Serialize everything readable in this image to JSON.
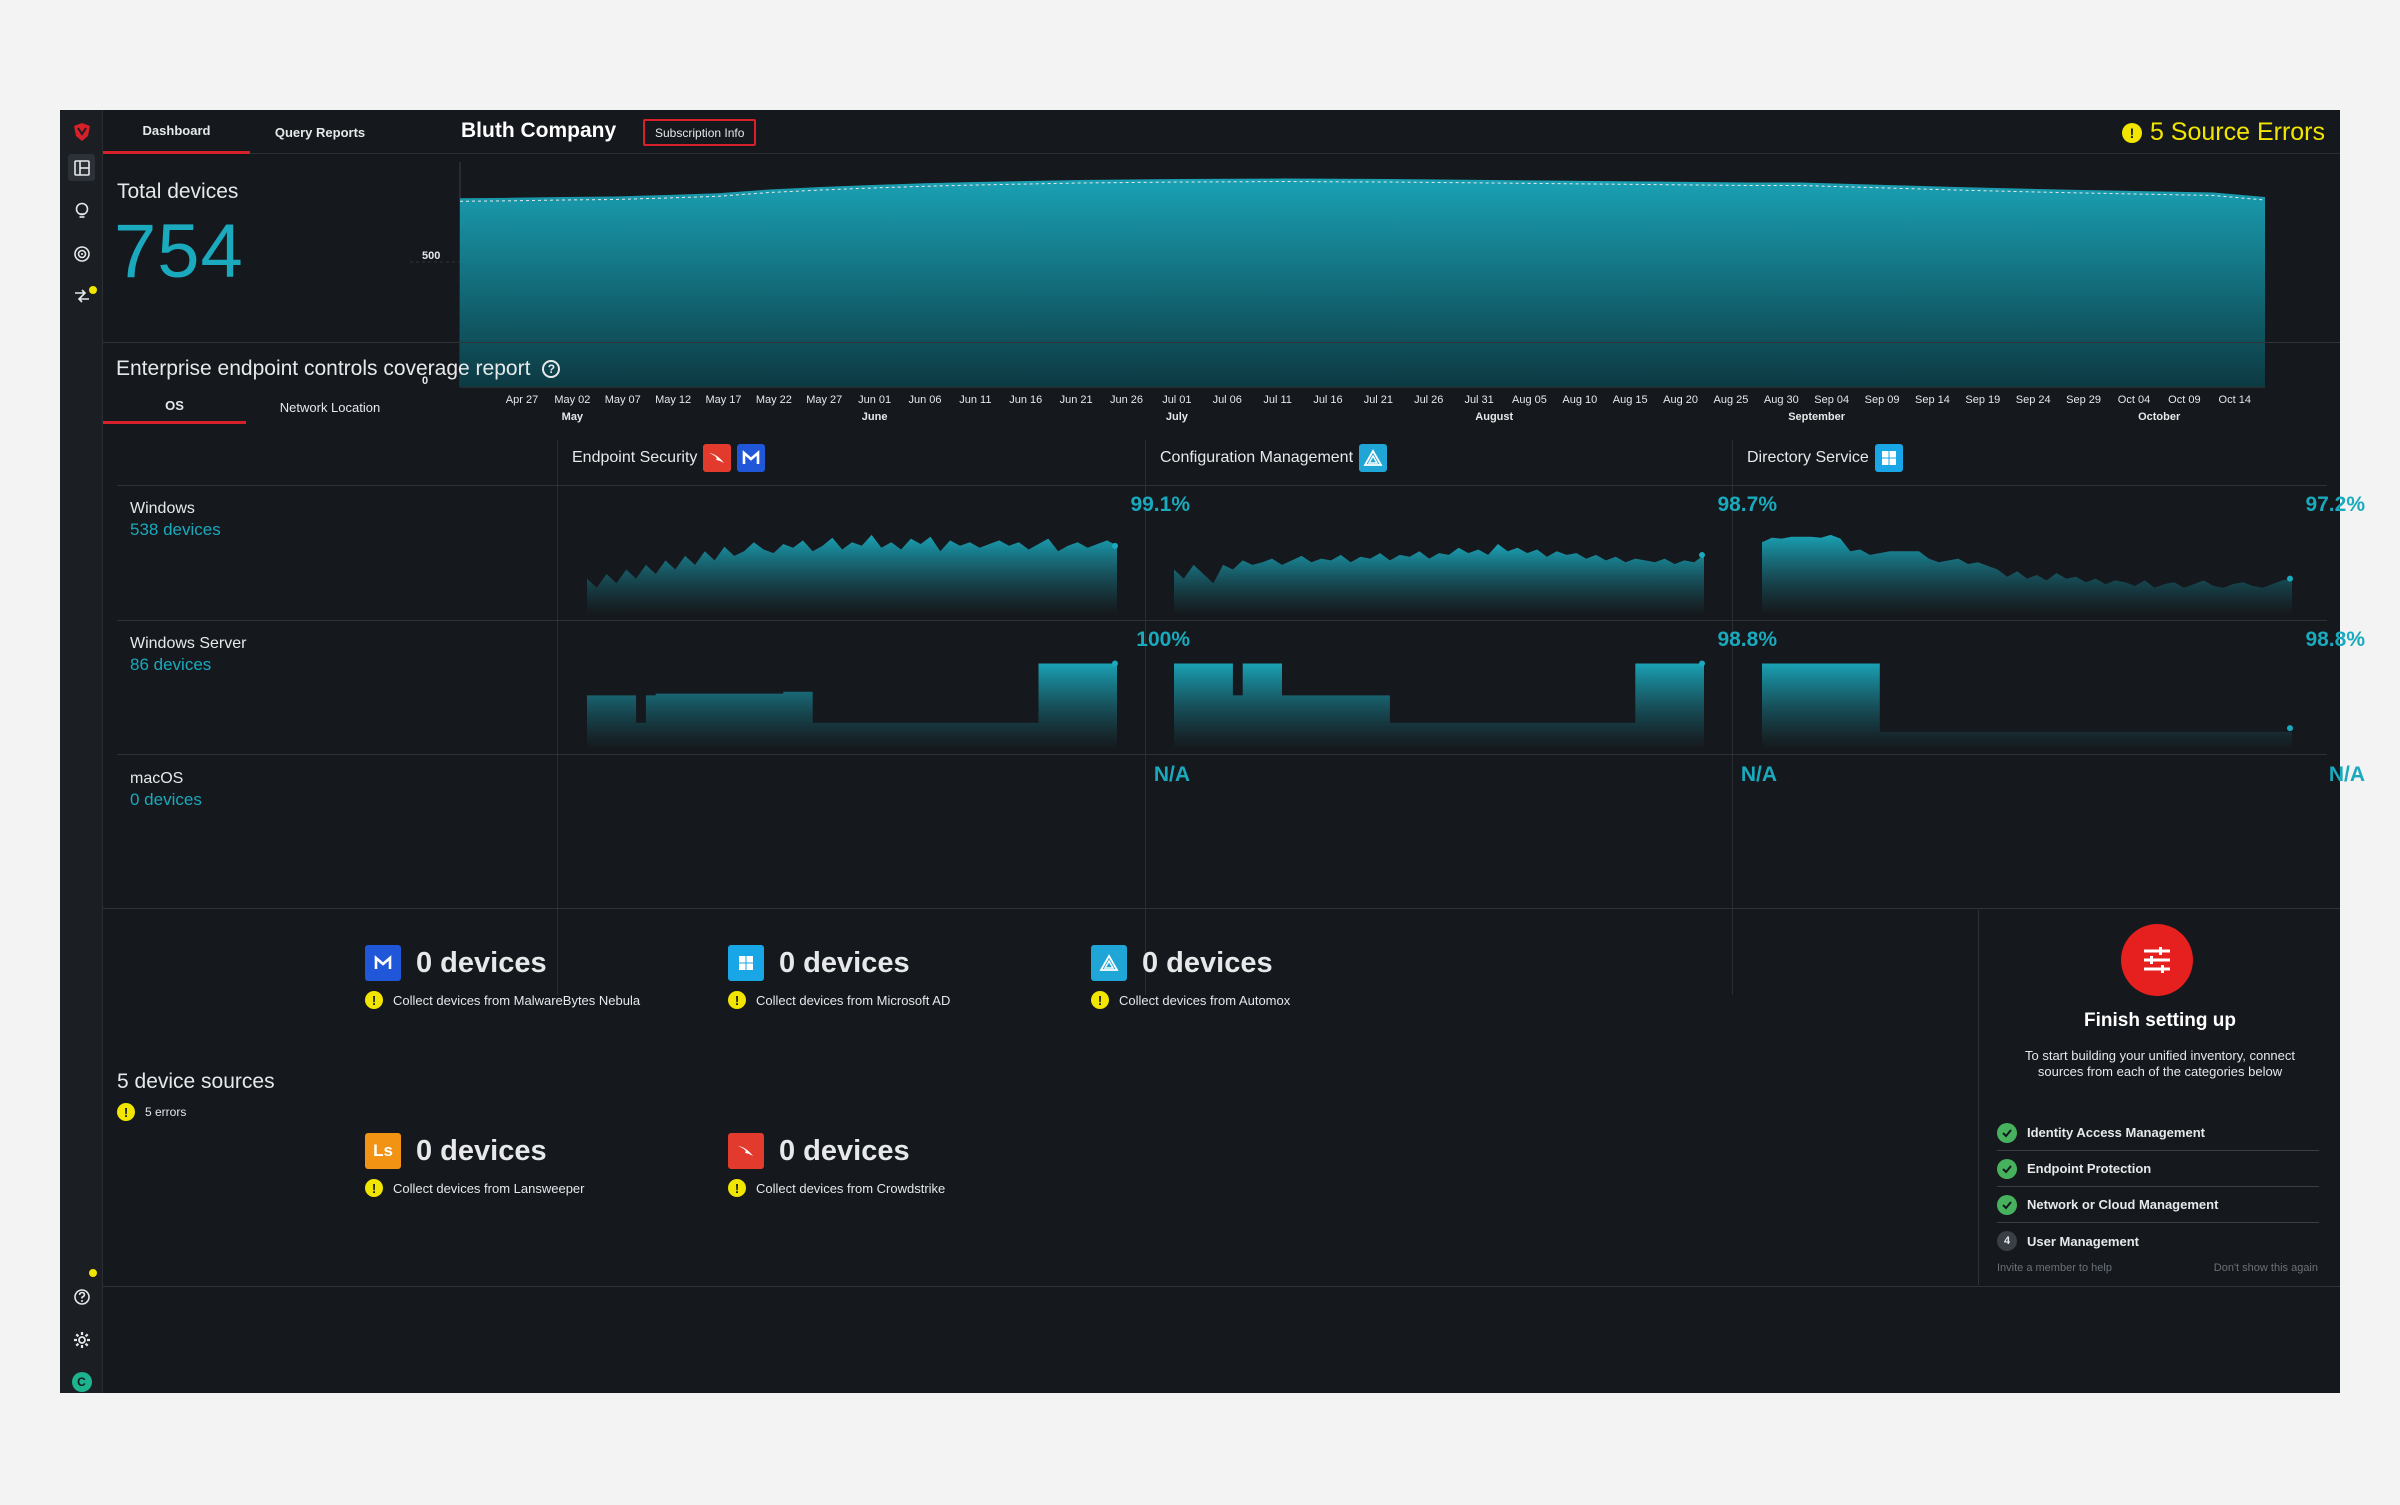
{
  "nav": {
    "tabs": [
      {
        "label": "Dashboard"
      },
      {
        "label": "Query Reports"
      }
    ],
    "company": "Bluth Company",
    "subscription_label": "Subscription Info",
    "source_errors": "5 Source Errors"
  },
  "rail": {
    "icons": [
      "shield-logo-icon",
      "dashboard-icon",
      "bulb-icon",
      "target-icon",
      "integrations-icon",
      "help-icon",
      "gear-icon",
      "user-avatar"
    ],
    "avatar_initial": "C"
  },
  "total_devices": {
    "label": "Total devices",
    "value": "754"
  },
  "chart_data": {
    "type": "area",
    "y_ticks": [
      "500",
      "0"
    ],
    "ylim": [
      0,
      900
    ],
    "x_ticks": [
      "Apr 27",
      "May 02",
      "May 07",
      "May 12",
      "May 17",
      "May 22",
      "May 27",
      "Jun 01",
      "Jun 06",
      "Jun 11",
      "Jun 16",
      "Jun 21",
      "Jun 26",
      "Jul 01",
      "Jul 06",
      "Jul 11",
      "Jul 16",
      "Jul 21",
      "Jul 26",
      "Jul 31",
      "Aug 05",
      "Aug 10",
      "Aug 15",
      "Aug 20",
      "Aug 25",
      "Aug 30",
      "Sep 04",
      "Sep 09",
      "Sep 14",
      "Sep 19",
      "Sep 24",
      "Sep 29",
      "Oct 04",
      "Oct 09",
      "Oct 14"
    ],
    "months": [
      {
        "label": "May",
        "tick": 1
      },
      {
        "label": "June",
        "tick": 7
      },
      {
        "label": "July",
        "tick": 13
      },
      {
        "label": "August",
        "tick": 19.3
      },
      {
        "label": "September",
        "tick": 25.7
      },
      {
        "label": "October",
        "tick": 32.5
      }
    ],
    "series": [
      {
        "values": [
          755,
          757,
          760,
          762,
          768,
          775,
          790,
          800,
          808,
          815,
          820,
          824,
          828,
          830,
          832,
          833,
          834,
          833,
          832,
          830,
          828,
          826,
          824,
          822,
          820,
          818,
          818,
          812,
          806,
          800,
          795,
          790,
          786,
          782,
          778,
          760
        ]
      }
    ]
  },
  "coverage": {
    "title": "Enterprise endpoint controls coverage report",
    "subtabs": [
      {
        "label": "OS"
      },
      {
        "label": "Network Location"
      }
    ],
    "columns": [
      {
        "label": "Endpoint Security",
        "logos": [
          "crowdstrike-logo",
          "malwarebytes-logo"
        ]
      },
      {
        "label": "Configuration Management",
        "logos": [
          "automox-logo"
        ]
      },
      {
        "label": "Directory Service",
        "logos": [
          "windows-logo"
        ]
      }
    ],
    "rows": [
      {
        "name": "Windows",
        "count": "538 devices",
        "cells": [
          {
            "pct": "99.1%",
            "values": [
              40,
              30,
              45,
              35,
              50,
              40,
              55,
              45,
              60,
              50,
              65,
              55,
              70,
              60,
              75,
              65,
              70,
              80,
              72,
              68,
              78,
              74,
              82,
              70,
              76,
              85,
              72,
              80,
              76,
              88,
              74,
              80,
              72,
              84,
              78,
              86,
              70,
              82,
              76,
              80,
              74,
              78,
              82,
              76,
              80,
              72,
              78,
              84,
              70,
              76,
              80,
              74,
              78,
              82,
              76
            ]
          },
          {
            "pct": "98.7%",
            "values": [
              50,
              40,
              55,
              45,
              35,
              55,
              50,
              60,
              55,
              58,
              62,
              55,
              60,
              65,
              58,
              62,
              60,
              66,
              58,
              64,
              62,
              68,
              60,
              66,
              64,
              70,
              62,
              68,
              66,
              74,
              68,
              72,
              66,
              78,
              70,
              74,
              68,
              72,
              64,
              70,
              66,
              68,
              62,
              66,
              60,
              64,
              58,
              62,
              60,
              58,
              62,
              56,
              60,
              58,
              66
            ]
          },
          {
            "pct": "97.2%",
            "values": [
              80,
              85,
              84,
              86,
              86,
              86,
              85,
              88,
              84,
              70,
              72,
              66,
              68,
              70,
              70,
              70,
              70,
              62,
              58,
              60,
              62,
              56,
              58,
              54,
              50,
              42,
              48,
              40,
              44,
              38,
              46,
              40,
              42,
              36,
              40,
              34,
              38,
              36,
              32,
              38,
              30,
              34,
              36,
              30,
              34,
              38,
              32,
              30,
              34,
              36,
              32,
              30,
              34,
              38,
              40
            ]
          }
        ]
      },
      {
        "name": "Windows Server",
        "count": "86 devices",
        "cells": [
          {
            "pct": "100%",
            "values": [
              60,
              60,
              60,
              60,
              60,
              30,
              60,
              62,
              62,
              62,
              62,
              62,
              62,
              62,
              62,
              62,
              62,
              62,
              62,
              62,
              64,
              64,
              64,
              30,
              30,
              30,
              30,
              30,
              30,
              30,
              30,
              30,
              30,
              30,
              30,
              30,
              30,
              30,
              30,
              30,
              30,
              30,
              30,
              30,
              30,
              30,
              95,
              95,
              95,
              95,
              95,
              95,
              95,
              95,
              95
            ]
          },
          {
            "pct": "98.8%",
            "values": [
              95,
              95,
              95,
              95,
              95,
              95,
              60,
              95,
              95,
              95,
              95,
              60,
              60,
              60,
              60,
              60,
              60,
              60,
              60,
              60,
              60,
              60,
              30,
              30,
              30,
              30,
              30,
              30,
              30,
              30,
              30,
              30,
              30,
              30,
              30,
              30,
              30,
              30,
              30,
              30,
              30,
              30,
              30,
              30,
              30,
              30,
              30,
              95,
              95,
              95,
              95,
              95,
              95,
              95,
              95
            ]
          },
          {
            "pct": "98.8%",
            "values": [
              95,
              95,
              95,
              95,
              95,
              95,
              95,
              95,
              95,
              95,
              95,
              95,
              20,
              20,
              20,
              20,
              20,
              20,
              20,
              20,
              20,
              20,
              20,
              20,
              20,
              20,
              20,
              20,
              20,
              20,
              20,
              20,
              20,
              20,
              20,
              20,
              20,
              20,
              20,
              20,
              20,
              20,
              20,
              20,
              20,
              20,
              20,
              20,
              20,
              20,
              20,
              20,
              20,
              20,
              24
            ]
          }
        ]
      },
      {
        "name": "macOS",
        "count": "0 devices",
        "cells": [
          {
            "pct": "N/A",
            "values": []
          },
          {
            "pct": "N/A",
            "values": []
          },
          {
            "pct": "N/A",
            "values": []
          }
        ]
      }
    ]
  },
  "sources": {
    "title": "5 device sources",
    "errors": "5 errors",
    "items": [
      {
        "logo": "malwarebytes-logo",
        "count": "0 devices",
        "message": "Collect devices from MalwareBytes Nebula"
      },
      {
        "logo": "microsoft-ad-logo",
        "count": "0 devices",
        "message": "Collect devices from Microsoft AD"
      },
      {
        "logo": "automox-logo",
        "count": "0 devices",
        "message": "Collect devices from Automox"
      },
      {
        "logo": "lansweeper-logo",
        "count": "0 devices",
        "message": "Collect devices from Lansweeper"
      },
      {
        "logo": "crowdstrike-logo",
        "count": "0 devices",
        "message": "Collect devices from Crowdstrike"
      }
    ]
  },
  "setup": {
    "title": "Finish setting up",
    "description": "To start building your unified inventory, connect sources from each of the categories below",
    "steps": [
      {
        "label": "Identity Access Management",
        "done": true
      },
      {
        "label": "Endpoint Protection",
        "done": true
      },
      {
        "label": "Network or Cloud Management",
        "done": true
      },
      {
        "label": "User Management",
        "done": false,
        "number": "4"
      }
    ],
    "invite_label": "Invite a member to help",
    "dismiss_label": "Don't show this again"
  },
  "colors": {
    "accent": "#1aa9bd",
    "brand_red": "#d6202a",
    "warning": "#f2e600",
    "success": "#47b25d"
  }
}
